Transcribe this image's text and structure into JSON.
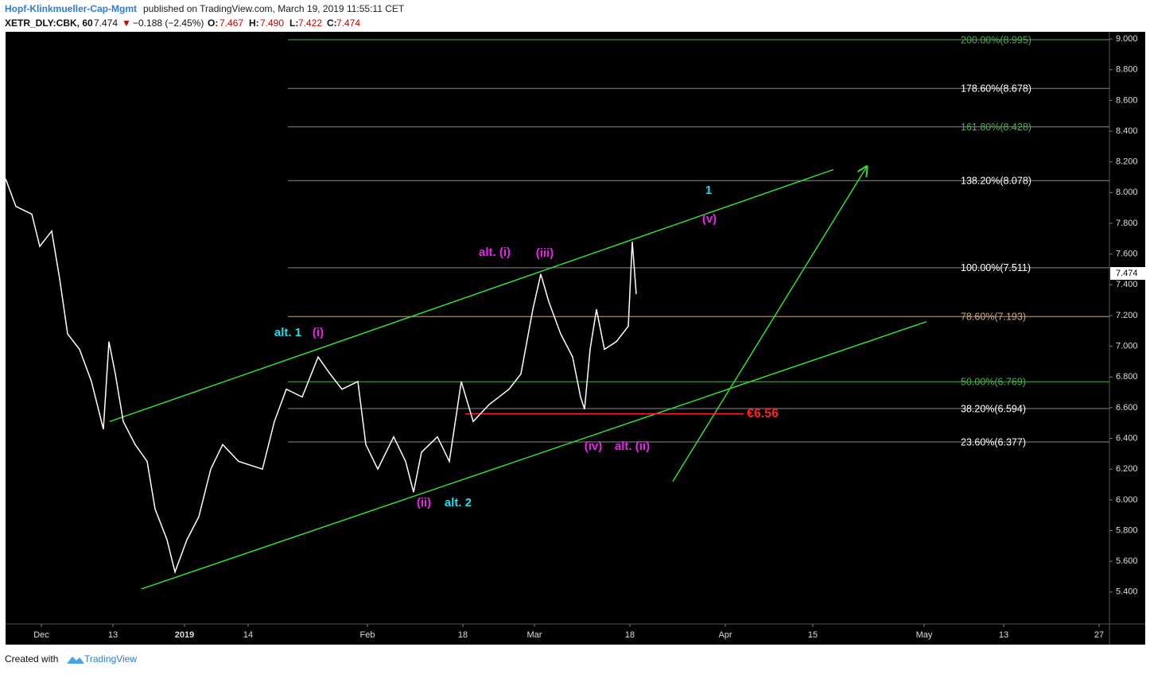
{
  "header": {
    "author": "Hopf-Klinkmueller-Cap-Mgmt",
    "published": "published on TradingView.com, March 19, 2019 11:55:11 CET",
    "symbol": "XETR_DLY:CBK, 60",
    "last": "7.474",
    "arrow": "▼",
    "change": "−0.188 (−2.45%)",
    "o_label": "O:",
    "o": "7.467",
    "h_label": "H:",
    "h": "7.490",
    "l_label": "L:",
    "l": "7.422",
    "c_label": "C:",
    "c": "7.474"
  },
  "footer": {
    "created": "Created with",
    "brand": "TradingView"
  },
  "chart_data": {
    "type": "line",
    "xlim": [
      -4.5,
      134.3
    ],
    "ylim": [
      5.192,
      9.047
    ],
    "xticks": [
      {
        "value": 0,
        "label": "Dec"
      },
      {
        "value": 9,
        "label": "13"
      },
      {
        "value": 18,
        "label": "2019"
      },
      {
        "value": 26,
        "label": "14"
      },
      {
        "value": 41,
        "label": "Feb"
      },
      {
        "value": 53,
        "label": "18"
      },
      {
        "value": 62,
        "label": "Mar"
      },
      {
        "value": 74,
        "label": "18"
      },
      {
        "value": 86,
        "label": "Apr"
      },
      {
        "value": 97,
        "label": "15"
      },
      {
        "value": 111,
        "label": "May"
      },
      {
        "value": 121,
        "label": "13"
      },
      {
        "value": 133,
        "label": "27"
      }
    ],
    "yticks": [
      {
        "value": 5.4,
        "label": "5.400"
      },
      {
        "value": 5.6,
        "label": "5.600"
      },
      {
        "value": 5.8,
        "label": "5.800"
      },
      {
        "value": 6,
        "label": "6.000"
      },
      {
        "value": 6.2,
        "label": "6.200"
      },
      {
        "value": 6.4,
        "label": "6.400"
      },
      {
        "value": 6.6,
        "label": "6.600"
      },
      {
        "value": 6.8,
        "label": "6.800"
      },
      {
        "value": 7,
        "label": "7.000"
      },
      {
        "value": 7.2,
        "label": "7.200"
      },
      {
        "value": 7.4,
        "label": "7.400"
      },
      {
        "value": 7.6,
        "label": "7.600"
      },
      {
        "value": 7.8,
        "label": "7.800"
      },
      {
        "value": 8,
        "label": "8.000"
      },
      {
        "value": 8.2,
        "label": "8.200"
      },
      {
        "value": 8.4,
        "label": "8.400"
      },
      {
        "value": 8.6,
        "label": "8.600"
      },
      {
        "value": 8.8,
        "label": "8.800"
      },
      {
        "value": 9,
        "label": "9.000"
      }
    ],
    "series": [
      {
        "name": "CBK",
        "color": "#ffffff",
        "x": [
          -4.5,
          -3.2,
          -1.2,
          -0.2,
          1.3,
          2.3,
          3.3,
          4.8,
          6.3,
          7.8,
          8.5,
          9.3,
          10.3,
          11.8,
          13.3,
          14.3,
          15.8,
          16.8,
          18.3,
          19.8,
          21.3,
          22.8,
          24.8,
          27.8,
          29.3,
          30.8,
          32.8,
          34.8,
          36.3,
          37.8,
          39.8,
          40.8,
          42.3,
          44.3,
          45.8,
          46.8,
          47.8,
          49.8,
          51.3,
          52.8,
          54.3,
          56.3,
          58.8,
          60.3,
          61.8,
          62.8,
          63.8,
          65.3,
          66.8,
          67.8,
          68.3,
          69.0,
          69.8,
          70.8,
          72.3,
          73.8,
          74.3,
          74.8
        ],
        "values": [
          8.09,
          7.91,
          7.86,
          7.65,
          7.75,
          7.44,
          7.08,
          6.98,
          6.77,
          6.46,
          7.03,
          6.82,
          6.51,
          6.36,
          6.25,
          5.94,
          5.74,
          5.53,
          5.74,
          5.89,
          6.2,
          6.36,
          6.25,
          6.2,
          6.51,
          6.72,
          6.67,
          6.93,
          6.82,
          6.72,
          6.77,
          6.36,
          6.2,
          6.41,
          6.25,
          6.05,
          6.31,
          6.41,
          6.25,
          6.77,
          6.51,
          6.62,
          6.72,
          6.82,
          7.24,
          7.47,
          7.29,
          7.08,
          6.93,
          6.67,
          6.59,
          6.98,
          7.24,
          6.98,
          7.03,
          7.13,
          7.68,
          7.34
        ]
      }
    ],
    "price_tag": {
      "value": 7.474,
      "label": "7.474"
    },
    "fib_levels": [
      {
        "label": "200.00%(8.995)",
        "value": 8.995,
        "color": "#4caf50"
      },
      {
        "label": "178.60%(8.678)",
        "value": 8.678,
        "color": "#888888"
      },
      {
        "label": "161.80%(8.428)",
        "value": 8.428,
        "color": "#4caf50"
      },
      {
        "label": "138.20%(8.078)",
        "value": 8.078,
        "color": "#888888"
      },
      {
        "label": "100.00%(7.511)",
        "value": 7.511,
        "color": "#888888"
      },
      {
        "label": "78.60%(7.193)",
        "value": 7.193,
        "color": "#c8a882"
      },
      {
        "label": "50.00%(6.769)",
        "value": 6.769,
        "color": "#4caf50"
      },
      {
        "label": "38.20%(6.594)",
        "value": 6.594,
        "color": "#888888"
      },
      {
        "label": "23.60%(6.377)",
        "value": 6.377,
        "color": "#888888"
      }
    ],
    "fib_x": [
      31,
      134.3
    ],
    "trend_lines": [
      {
        "x": [
          8.6,
          99.6
        ],
        "y": [
          6.51,
          8.15
        ],
        "color": "#33dd33"
      },
      {
        "x": [
          12.6,
          111.3
        ],
        "y": [
          5.42,
          7.16
        ],
        "color": "#33dd33"
      },
      {
        "x": [
          79.4,
          103.8
        ],
        "y": [
          6.12,
          8.17
        ],
        "color": "#33dd33",
        "arrow": true
      }
    ],
    "support": {
      "x": [
        53.3,
        88.3
      ],
      "value": 6.56,
      "label": "€6.56",
      "color": "#ff2222"
    },
    "annotations": {
      "wave1": "1",
      "v": "(v)",
      "alt_i": "alt. (i)",
      "iii": "(iii)",
      "alt1": "alt. 1",
      "i": "(i)",
      "iv": "(iv)",
      "alt_ii": "alt. (ii)",
      "ii": "(ii)",
      "alt2": "alt. 2"
    }
  }
}
